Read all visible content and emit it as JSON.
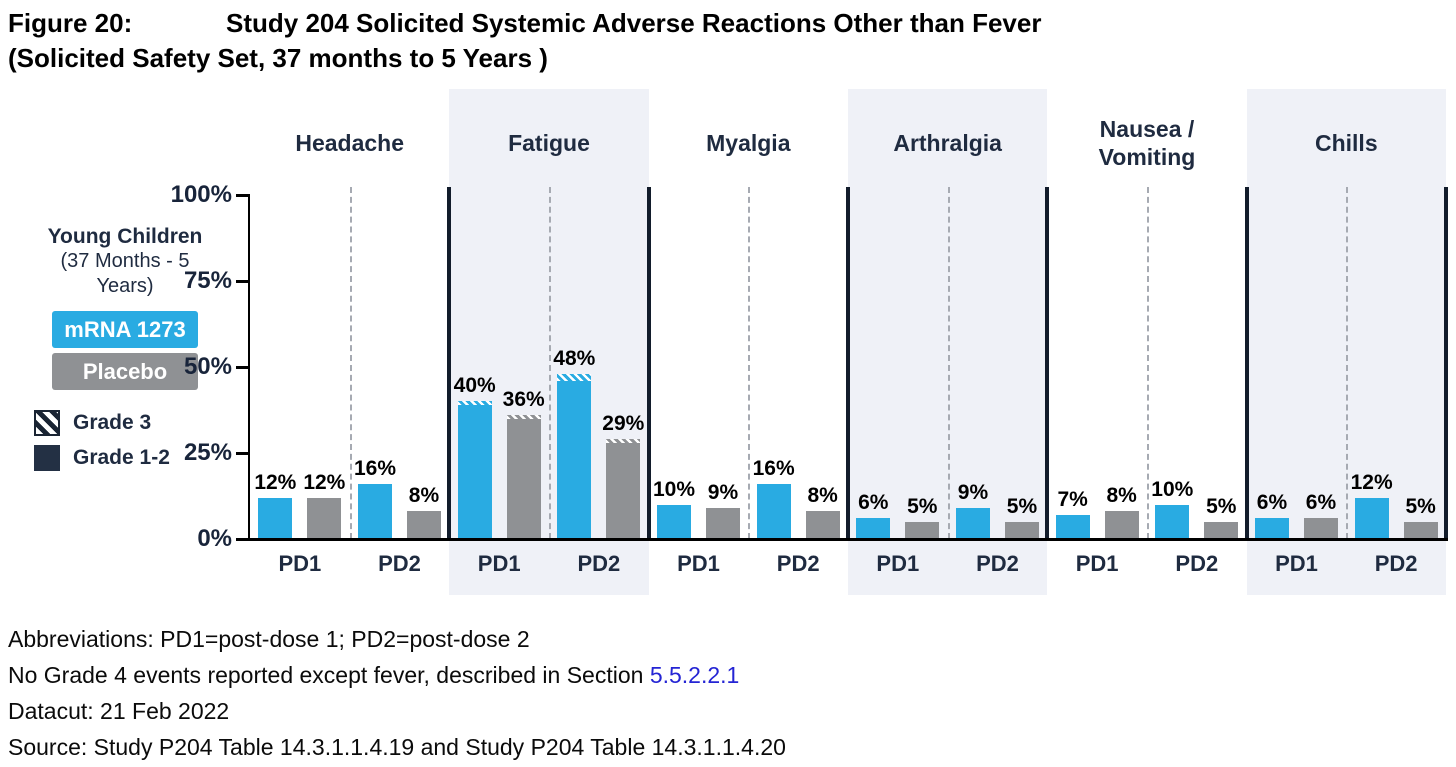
{
  "title": {
    "figure_label": "Figure 20:",
    "text": "Study 204 Solicited Systemic Adverse Reactions Other than Fever",
    "subtitle": "(Solicited Safety Set, 37 months to 5 Years )"
  },
  "legend": {
    "group_title": "Young Children",
    "group_subtitle_line1": "(37 Months - 5",
    "group_subtitle_line2": "Years)",
    "series": [
      {
        "name": "mRNA 1273",
        "color": "#29ABE2"
      },
      {
        "name": "Placebo",
        "color": "#8F9194"
      }
    ],
    "grades": [
      {
        "name": "Grade 3",
        "style": "hatched"
      },
      {
        "name": "Grade 1-2",
        "color": "#233044"
      }
    ]
  },
  "colors": {
    "mrna_blue": "#29ABE2",
    "placebo_gray": "#8F9194",
    "navy_text": "#1F2B40",
    "grade12_navy": "#233044",
    "shaded_panel_bg": "#EFF1F7",
    "panel_separator": "#121C2B",
    "link_blue": "#2424D4"
  },
  "chart_data": {
    "type": "bar",
    "title": "Study 204 Solicited Systemic Adverse Reactions Other than Fever (Solicited Safety Set, 37 months to 5 Years)",
    "ylabel": "",
    "ylim": [
      0,
      100
    ],
    "yticks": [
      100,
      75,
      50,
      25,
      0
    ],
    "value_suffix": "%",
    "grid": false,
    "legend_position": "left",
    "series_names": [
      "mRNA 1273",
      "Placebo"
    ],
    "group_labels": [
      "PD1",
      "PD2"
    ],
    "panels": [
      {
        "name": "Headache",
        "name_lines": [
          "Headache"
        ],
        "shaded": false,
        "groups": [
          {
            "label": "PD1",
            "values": [
              12,
              12
            ],
            "grade3": [
              0,
              0
            ]
          },
          {
            "label": "PD2",
            "values": [
              16,
              8
            ],
            "grade3": [
              0,
              0
            ]
          }
        ]
      },
      {
        "name": "Fatigue",
        "name_lines": [
          "Fatigue"
        ],
        "shaded": true,
        "groups": [
          {
            "label": "PD1",
            "values": [
              40,
              36
            ],
            "grade3": [
              1,
              1
            ]
          },
          {
            "label": "PD2",
            "values": [
              48,
              29
            ],
            "grade3": [
              2,
              1
            ]
          }
        ]
      },
      {
        "name": "Myalgia",
        "name_lines": [
          "Myalgia"
        ],
        "shaded": false,
        "groups": [
          {
            "label": "PD1",
            "values": [
              10,
              9
            ],
            "grade3": [
              0,
              0
            ]
          },
          {
            "label": "PD2",
            "values": [
              16,
              8
            ],
            "grade3": [
              0,
              0
            ]
          }
        ]
      },
      {
        "name": "Arthralgia",
        "name_lines": [
          "Arthralgia"
        ],
        "shaded": true,
        "groups": [
          {
            "label": "PD1",
            "values": [
              6,
              5
            ],
            "grade3": [
              0,
              0
            ]
          },
          {
            "label": "PD2",
            "values": [
              9,
              5
            ],
            "grade3": [
              0,
              0
            ]
          }
        ]
      },
      {
        "name": "Nausea / Vomiting",
        "name_lines": [
          "Nausea /",
          "Vomiting"
        ],
        "shaded": false,
        "groups": [
          {
            "label": "PD1",
            "values": [
              7,
              8
            ],
            "grade3": [
              0,
              0
            ]
          },
          {
            "label": "PD2",
            "values": [
              10,
              5
            ],
            "grade3": [
              0,
              0
            ]
          }
        ]
      },
      {
        "name": "Chills",
        "name_lines": [
          "Chills"
        ],
        "shaded": true,
        "groups": [
          {
            "label": "PD1",
            "values": [
              6,
              6
            ],
            "grade3": [
              0,
              0
            ]
          },
          {
            "label": "PD2",
            "values": [
              12,
              5
            ],
            "grade3": [
              0,
              0
            ]
          }
        ]
      }
    ]
  },
  "footnotes": {
    "line1": "Abbreviations: PD1=post-dose 1; PD2=post-dose 2",
    "line2_prefix": "No Grade 4 events reported except fever, described in Section ",
    "line2_link": "5.5.2.2.1",
    "line3": "Datacut: 21 Feb 2022",
    "line4": "Source: Study P204 Table 14.3.1.1.4.19 and Study P204 Table 14.3.1.1.4.20"
  }
}
